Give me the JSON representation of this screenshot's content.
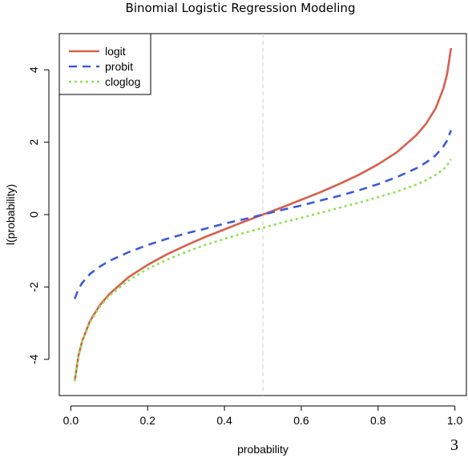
{
  "page_number": "3",
  "chart_data": {
    "type": "line",
    "title": "Binomial Logistic Regression Modeling",
    "xlabel": "probability",
    "ylabel": "l(probability)",
    "xlim": [
      -0.03,
      1.03
    ],
    "ylim": [
      -5,
      5
    ],
    "x_ticks": [
      0.0,
      0.2,
      0.4,
      0.6,
      0.8,
      1.0
    ],
    "x_tick_labels": [
      "0.0",
      "0.2",
      "0.4",
      "0.6",
      "0.8",
      "1.0"
    ],
    "y_ticks": [
      4,
      2,
      0,
      -2,
      -4
    ],
    "y_tick_labels": [
      "4",
      "2",
      "0",
      "-2",
      "-4"
    ],
    "vline": {
      "x": 0.5,
      "color": "#cccccc",
      "style": "dashed"
    },
    "legend_position": "top-left",
    "x": [
      0.01,
      0.02,
      0.03,
      0.05,
      0.075,
      0.1,
      0.15,
      0.2,
      0.25,
      0.3,
      0.35,
      0.4,
      0.45,
      0.5,
      0.55,
      0.6,
      0.65,
      0.7,
      0.75,
      0.8,
      0.85,
      0.9,
      0.925,
      0.95,
      0.97,
      0.98,
      0.99
    ],
    "series": [
      {
        "name": "logit",
        "color": "#d7604d",
        "style": "solid",
        "values": [
          -4.6,
          -3.89,
          -3.48,
          -2.94,
          -2.51,
          -2.2,
          -1.73,
          -1.39,
          -1.1,
          -0.85,
          -0.62,
          -0.41,
          -0.2,
          0.0,
          0.2,
          0.41,
          0.62,
          0.85,
          1.1,
          1.39,
          1.73,
          2.2,
          2.51,
          2.94,
          3.48,
          3.89,
          4.6
        ]
      },
      {
        "name": "probit",
        "color": "#3b5bdb",
        "style": "dashed",
        "values": [
          -2.33,
          -2.05,
          -1.88,
          -1.64,
          -1.44,
          -1.28,
          -1.04,
          -0.84,
          -0.67,
          -0.52,
          -0.39,
          -0.25,
          -0.13,
          0.0,
          0.13,
          0.25,
          0.39,
          0.52,
          0.67,
          0.84,
          1.04,
          1.28,
          1.44,
          1.64,
          1.88,
          2.05,
          2.33
        ]
      },
      {
        "name": "cloglog",
        "color": "#90e050",
        "style": "dotted",
        "values": [
          -4.6,
          -3.9,
          -3.49,
          -2.97,
          -2.55,
          -2.25,
          -1.82,
          -1.5,
          -1.25,
          -1.03,
          -0.84,
          -0.67,
          -0.51,
          -0.37,
          -0.22,
          -0.09,
          0.05,
          0.19,
          0.33,
          0.48,
          0.64,
          0.83,
          0.95,
          1.1,
          1.25,
          1.36,
          1.53
        ]
      }
    ]
  }
}
